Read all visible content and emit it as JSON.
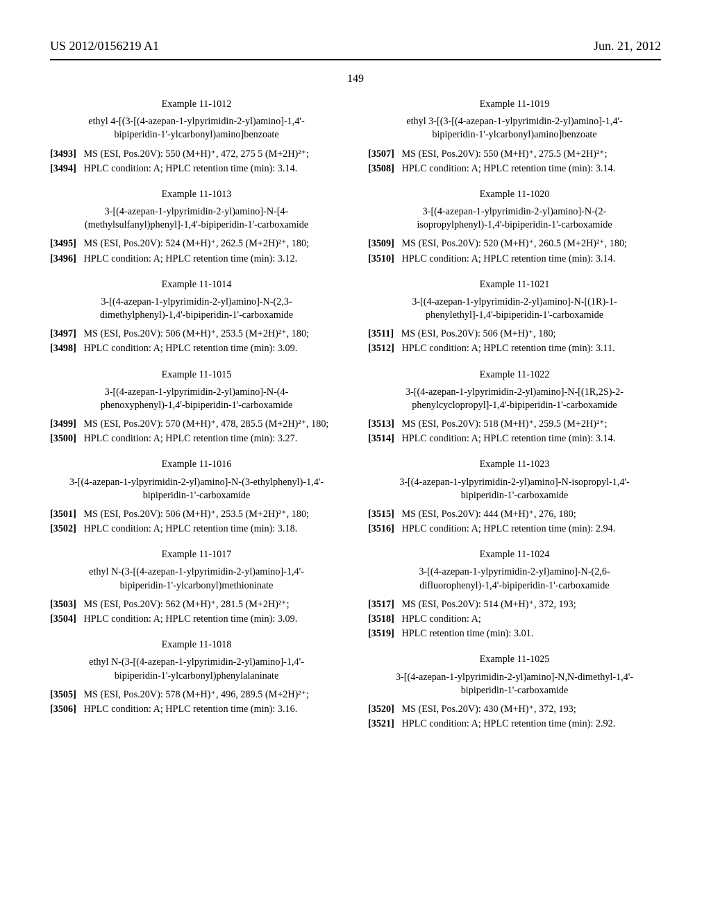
{
  "header": {
    "left": "US 2012/0156219 A1",
    "right": "Jun. 21, 2012"
  },
  "pageNumber": "149",
  "examples": [
    {
      "title": "Example 11-1012",
      "name": "ethyl 4-[(3-[(4-azepan-1-ylpyrimidin-2-yl)amino]-1,4'-bipiperidin-1'-ylcarbonyl)amino]benzoate",
      "paras": [
        {
          "num": "[3493]",
          "text": "MS (ESI, Pos.20V): 550 (M+H)⁺, 472, 275 5 (M+2H)²⁺;"
        },
        {
          "num": "[3494]",
          "text": "HPLC condition: A; HPLC retention time (min): 3.14."
        }
      ]
    },
    {
      "title": "Example 11-1013",
      "name": "3-[(4-azepan-1-ylpyrimidin-2-yl)amino]-N-[4-(methylsulfanyl)phenyl]-1,4'-bipiperidin-1'-carboxamide",
      "paras": [
        {
          "num": "[3495]",
          "text": "MS (ESI, Pos.20V): 524 (M+H)⁺, 262.5 (M+2H)²⁺, 180;"
        },
        {
          "num": "[3496]",
          "text": "HPLC condition: A; HPLC retention time (min): 3.12."
        }
      ]
    },
    {
      "title": "Example 11-1014",
      "name": "3-[(4-azepan-1-ylpyrimidin-2-yl)amino]-N-(2,3-dimethylphenyl)-1,4'-bipiperidin-1'-carboxamide",
      "paras": [
        {
          "num": "[3497]",
          "text": "MS (ESI, Pos.20V): 506 (M+H)⁺, 253.5 (M+2H)²⁺, 180;"
        },
        {
          "num": "[3498]",
          "text": "HPLC condition: A; HPLC retention time (min): 3.09."
        }
      ]
    },
    {
      "title": "Example 11-1015",
      "name": "3-[(4-azepan-1-ylpyrimidin-2-yl)amino]-N-(4-phenoxyphenyl)-1,4'-bipiperidin-1'-carboxamide",
      "paras": [
        {
          "num": "[3499]",
          "text": "MS (ESI, Pos.20V): 570 (M+H)⁺, 478, 285.5 (M+2H)²⁺, 180;"
        },
        {
          "num": "[3500]",
          "text": "HPLC condition: A; HPLC retention time (min): 3.27."
        }
      ]
    },
    {
      "title": "Example 11-1016",
      "name": "3-[(4-azepan-1-ylpyrimidin-2-yl)amino]-N-(3-ethylphenyl)-1,4'-bipiperidin-1'-carboxamide",
      "paras": [
        {
          "num": "[3501]",
          "text": "MS (ESI, Pos.20V): 506 (M+H)⁺, 253.5 (M+2H)²⁺, 180;"
        },
        {
          "num": "[3502]",
          "text": "HPLC condition: A; HPLC retention time (min): 3.18."
        }
      ]
    },
    {
      "title": "Example 11-1017",
      "name": "ethyl N-(3-[(4-azepan-1-ylpyrimidin-2-yl)amino]-1,4'-bipiperidin-1'-ylcarbonyl)methioninate",
      "paras": [
        {
          "num": "[3503]",
          "text": "MS (ESI, Pos.20V): 562 (M+H)⁺, 281.5 (M+2H)²⁺;"
        },
        {
          "num": "[3504]",
          "text": "HPLC condition: A; HPLC retention time (min): 3.09."
        }
      ]
    },
    {
      "title": "Example 11-1018",
      "name": "ethyl N-(3-[(4-azepan-1-ylpyrimidin-2-yl)amino]-1,4'-bipiperidin-1'-ylcarbonyl)phenylalaninate",
      "paras": [
        {
          "num": "[3505]",
          "text": "MS (ESI, Pos.20V): 578 (M+H)⁺, 496, 289.5 (M+2H)²⁺;"
        },
        {
          "num": "[3506]",
          "text": "HPLC condition: A; HPLC retention time (min): 3.16."
        }
      ]
    },
    {
      "title": "Example 11-1019",
      "name": "ethyl 3-[(3-[(4-azepan-1-ylpyrimidin-2-yl)amino]-1,4'-bipiperidin-1'-ylcarbonyl)amino]benzoate",
      "paras": [
        {
          "num": "[3507]",
          "text": "MS (ESI, Pos.20V): 550 (M+H)⁺, 275.5 (M+2H)²⁺;"
        },
        {
          "num": "[3508]",
          "text": "HPLC condition: A; HPLC retention time (min): 3.14."
        }
      ]
    },
    {
      "title": "Example 11-1020",
      "name": "3-[(4-azepan-1-ylpyrimidin-2-yl)amino]-N-(2-isopropylphenyl)-1,4'-bipiperidin-1'-carboxamide",
      "paras": [
        {
          "num": "[3509]",
          "text": "MS (ESI, Pos.20V): 520 (M+H)⁺, 260.5 (M+2H)²⁺, 180;"
        },
        {
          "num": "[3510]",
          "text": "HPLC condition: A; HPLC retention time (min): 3.14."
        }
      ]
    },
    {
      "title": "Example 11-1021",
      "name": "3-[(4-azepan-1-ylpyrimidin-2-yl)amino]-N-[(1R)-1-phenylethyl]-1,4'-bipiperidin-1'-carboxamide",
      "paras": [
        {
          "num": "[3511]",
          "text": "MS (ESI, Pos.20V): 506 (M+H)⁺, 180;"
        },
        {
          "num": "[3512]",
          "text": "HPLC condition: A; HPLC retention time (min): 3.11."
        }
      ]
    },
    {
      "title": "Example 11-1022",
      "name": "3-[(4-azepan-1-ylpyrimidin-2-yl)amino]-N-[(1R,2S)-2-phenylcyclopropyl]-1,4'-bipiperidin-1'-carboxamide",
      "paras": [
        {
          "num": "[3513]",
          "text": "MS (ESI, Pos.20V): 518 (M+H)⁺, 259.5 (M+2H)²⁺;"
        },
        {
          "num": "[3514]",
          "text": "HPLC condition: A; HPLC retention time (min): 3.14."
        }
      ]
    },
    {
      "title": "Example 11-1023",
      "name": "3-[(4-azepan-1-ylpyrimidin-2-yl)amino]-N-isopropyl-1,4'-bipiperidin-1'-carboxamide",
      "paras": [
        {
          "num": "[3515]",
          "text": "MS (ESI, Pos.20V): 444 (M+H)⁺, 276, 180;"
        },
        {
          "num": "[3516]",
          "text": "HPLC condition: A; HPLC retention time (min): 2.94."
        }
      ]
    },
    {
      "title": "Example 11-1024",
      "name": "3-[(4-azepan-1-ylpyrimidin-2-yl)amino]-N-(2,6-difluorophenyl)-1,4'-bipiperidin-1'-carboxamide",
      "paras": [
        {
          "num": "[3517]",
          "text": "MS (ESI, Pos.20V): 514 (M+H)⁺, 372, 193;"
        },
        {
          "num": "[3518]",
          "text": "HPLC condition: A;"
        },
        {
          "num": "[3519]",
          "text": "HPLC retention time (min): 3.01."
        }
      ]
    },
    {
      "title": "Example 11-1025",
      "name": "3-[(4-azepan-1-ylpyrimidin-2-yl)amino]-N,N-dimethyl-1,4'-bipiperidin-1'-carboxamide",
      "paras": [
        {
          "num": "[3520]",
          "text": "MS (ESI, Pos.20V): 430 (M+H)⁺, 372, 193;"
        },
        {
          "num": "[3521]",
          "text": "HPLC condition: A; HPLC retention time (min): 2.92."
        }
      ]
    }
  ]
}
